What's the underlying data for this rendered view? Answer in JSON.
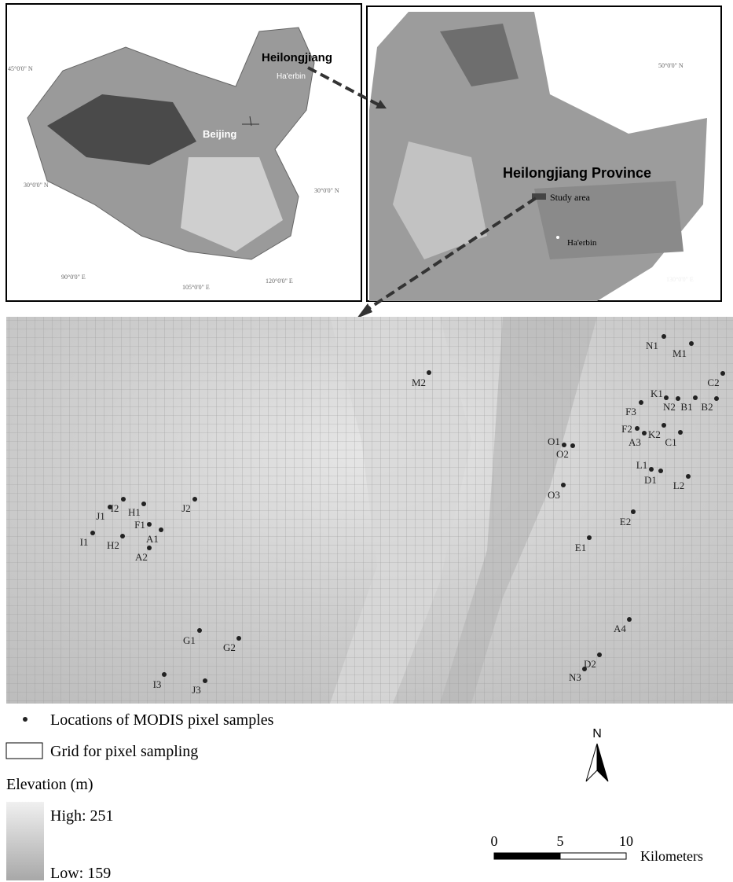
{
  "inset_china": {
    "labels": {
      "province": "Heilongjiang",
      "city": "Ha'erbin",
      "capital": "Beijing"
    },
    "graticule": [
      "45°0'0\" N",
      "30°0'0\" N",
      "30°0'0\" N",
      "90°0'0\" E",
      "105°0'0\" E",
      "120°0'0\" E"
    ]
  },
  "inset_province": {
    "title": "Heilongjiang Province",
    "study_area": "Study area",
    "city": "Ha'erbin",
    "graticule": [
      "50°0'0\" N",
      "130°0'0\" E"
    ]
  },
  "samples": [
    "N1",
    "M1",
    "C2",
    "M2",
    "K1",
    "N2",
    "B1",
    "B2",
    "F3",
    "F2",
    "A3",
    "K2",
    "C1",
    "O1",
    "O2",
    "L1",
    "D1",
    "L2",
    "O3",
    "E2",
    "E1",
    "J2",
    "I2",
    "J1",
    "H1",
    "F1",
    "A1",
    "I1",
    "H2",
    "A2",
    "G1",
    "G2",
    "I3",
    "J3",
    "A4",
    "D2",
    "N3"
  ],
  "legend": {
    "samples": "Locations of MODIS pixel samples",
    "grid": "Grid for pixel sampling",
    "elevation_title": "Elevation (m)",
    "high": "High: 251",
    "low": "Low: 159"
  },
  "north": "N",
  "scale": {
    "ticks": [
      "0",
      "5",
      "10"
    ],
    "unit": "Kilometers"
  }
}
